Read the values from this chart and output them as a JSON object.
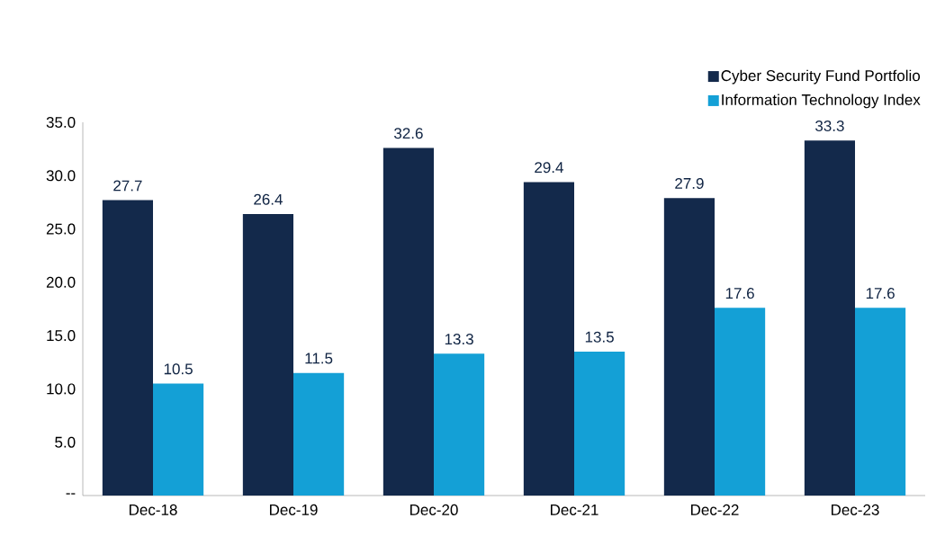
{
  "chart_data": {
    "type": "bar",
    "categories": [
      "Dec-18",
      "Dec-19",
      "Dec-20",
      "Dec-21",
      "Dec-22",
      "Dec-23"
    ],
    "series": [
      {
        "name": "Cyber Security Fund Portfolio",
        "color": "#13294b",
        "values": [
          27.7,
          26.4,
          32.6,
          29.4,
          27.9,
          33.3
        ]
      },
      {
        "name": "Information Technology Index",
        "color": "#14a0d6",
        "values": [
          10.5,
          11.5,
          13.3,
          13.5,
          17.6,
          17.6
        ]
      }
    ],
    "ylim": [
      0,
      35
    ],
    "yticks": [
      {
        "value": 0,
        "label": "--"
      },
      {
        "value": 5,
        "label": "5.0"
      },
      {
        "value": 10,
        "label": "10.0"
      },
      {
        "value": 15,
        "label": "15.0"
      },
      {
        "value": 20,
        "label": "20.0"
      },
      {
        "value": 25,
        "label": "25.0"
      },
      {
        "value": 30,
        "label": "30.0"
      },
      {
        "value": 35,
        "label": "35.0"
      }
    ],
    "data_labels": true,
    "grid": false,
    "legend": "top right"
  }
}
